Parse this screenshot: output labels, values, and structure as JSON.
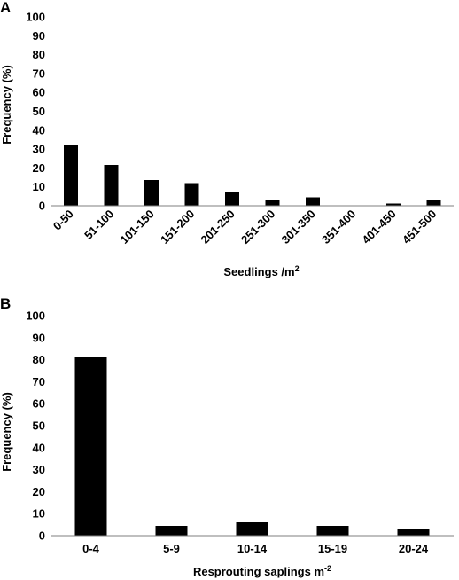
{
  "chart_data": [
    {
      "type": "bar",
      "panel_label": "A",
      "categories": [
        "0-50",
        "51-100",
        "101-150",
        "151-200",
        "201-250",
        "251-300",
        "301-350",
        "351-400",
        "401-450",
        "451-500"
      ],
      "values": [
        32.5,
        21.5,
        13.5,
        12,
        7.5,
        3,
        4.5,
        0,
        1.2,
        3
      ],
      "xlabel_main": "Seedlings /m",
      "xlabel_sup": "2",
      "ylabel": "Frequency (%)",
      "ylim": [
        0,
        100
      ],
      "yticks": [
        "0",
        "10",
        "20",
        "30",
        "40",
        "50",
        "60",
        "70",
        "80",
        "90",
        "100"
      ],
      "grid": false
    },
    {
      "type": "bar",
      "panel_label": "B",
      "categories": [
        "0-4",
        "5-9",
        "10-14",
        "15-19",
        "20-24"
      ],
      "values": [
        81.5,
        4.5,
        6,
        4.5,
        3
      ],
      "xlabel_main": "Resprouting saplings m",
      "xlabel_sup": "-2",
      "ylabel": "Frequency (%)",
      "ylim": [
        0,
        100
      ],
      "yticks": [
        "0",
        "10",
        "20",
        "30",
        "40",
        "50",
        "60",
        "70",
        "80",
        "90",
        "100"
      ],
      "grid": false
    }
  ]
}
